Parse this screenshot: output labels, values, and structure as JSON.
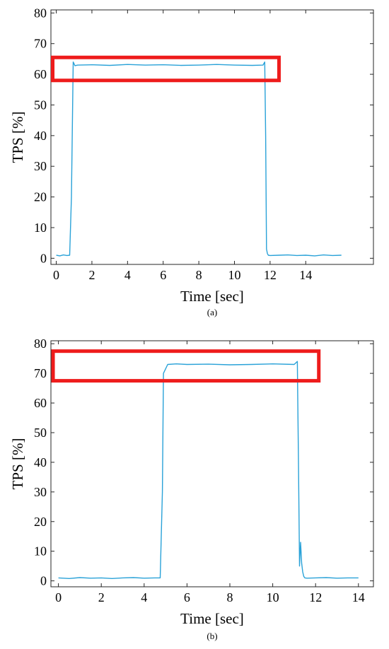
{
  "chart_data": [
    {
      "type": "line",
      "caption": "(a)",
      "xlabel": "Time [sec]",
      "ylabel": "TPS [%]",
      "xlim": [
        -0.3,
        17.8
      ],
      "ylim": [
        -2,
        81
      ],
      "xticks": [
        0,
        2,
        4,
        6,
        8,
        10,
        12,
        14
      ],
      "yticks": [
        0,
        10,
        20,
        30,
        40,
        50,
        60,
        70,
        80
      ],
      "grid": false,
      "line_color": "#2aa2d8",
      "highlight_color": "#ee1c1c",
      "highlight_box": {
        "x": [
          -0.2,
          12.5
        ],
        "y": [
          58,
          65.5
        ]
      },
      "series": [
        {
          "x": [
            0.0,
            0.2,
            0.4,
            0.6,
            0.75,
            0.85,
            0.95,
            1.05,
            1.2,
            2.0,
            3.0,
            4.0,
            5.0,
            6.0,
            7.0,
            8.0,
            9.0,
            10.0,
            11.0,
            11.6,
            11.7,
            11.75,
            11.8,
            11.85,
            11.9,
            12.0,
            12.5,
            13.0,
            13.5,
            14.0,
            14.5,
            15.0,
            15.5,
            16.0
          ],
          "y": [
            1.0,
            0.8,
            1.1,
            0.9,
            1.0,
            20.0,
            64.0,
            62.8,
            63.0,
            63.1,
            62.9,
            63.2,
            63.0,
            63.1,
            62.9,
            63.0,
            63.2,
            63.0,
            62.9,
            63.0,
            64.0,
            40.0,
            3.0,
            1.5,
            1.0,
            0.9,
            1.0,
            1.1,
            0.9,
            1.0,
            0.8,
            1.1,
            0.9,
            1.0
          ]
        }
      ]
    },
    {
      "type": "line",
      "caption": "(b)",
      "xlabel": "Time [sec]",
      "ylabel": "TPS [%]",
      "xlim": [
        -0.35,
        14.7
      ],
      "ylim": [
        -2,
        81
      ],
      "xticks": [
        0,
        2,
        4,
        6,
        8,
        10,
        12,
        14
      ],
      "yticks": [
        0,
        10,
        20,
        30,
        40,
        50,
        60,
        70,
        80
      ],
      "grid": false,
      "line_color": "#2aa2d8",
      "highlight_color": "#ee1c1c",
      "highlight_box": {
        "x": [
          -0.25,
          12.15
        ],
        "y": [
          67.5,
          77.5
        ]
      },
      "series": [
        {
          "x": [
            0.0,
            0.5,
            1.0,
            1.5,
            2.0,
            2.5,
            3.0,
            3.5,
            4.0,
            4.5,
            4.75,
            4.85,
            4.9,
            5.0,
            5.1,
            5.5,
            6.0,
            7.0,
            8.0,
            9.0,
            10.0,
            11.0,
            11.15,
            11.2,
            11.25,
            11.3,
            11.35,
            11.4,
            11.45,
            11.5,
            11.6,
            12.0,
            12.5,
            13.0,
            13.5,
            14.0
          ],
          "y": [
            1.0,
            0.8,
            1.1,
            0.9,
            1.0,
            0.8,
            1.0,
            1.1,
            0.9,
            1.0,
            1.0,
            30.0,
            70.0,
            71.5,
            73.0,
            73.2,
            73.0,
            73.1,
            72.9,
            73.0,
            73.2,
            73.0,
            74.0,
            40.0,
            5.0,
            13.0,
            6.0,
            3.0,
            1.5,
            1.0,
            0.9,
            1.0,
            1.1,
            0.9,
            1.0,
            1.0
          ]
        }
      ]
    }
  ]
}
